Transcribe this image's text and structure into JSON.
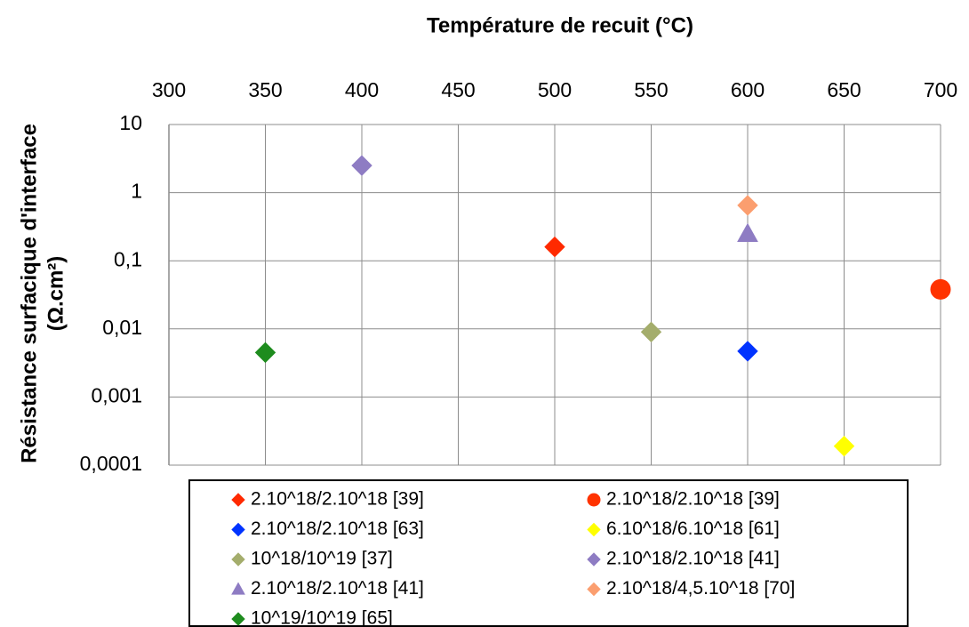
{
  "chart_data": {
    "type": "scatter",
    "xlabel": "Température de recuit (°C)",
    "ylabel": [
      "Résistance surfacique d'interface",
      "(Ω.cm²)"
    ],
    "xlim": [
      300,
      700
    ],
    "xticks": [
      300,
      350,
      400,
      450,
      500,
      550,
      600,
      650,
      700
    ],
    "ylim": [
      0.0001,
      10
    ],
    "ylog": true,
    "yticks": [
      {
        "value": 0.0001,
        "label": "0,0001"
      },
      {
        "value": 0.001,
        "label": "0,001"
      },
      {
        "value": 0.01,
        "label": "0,01"
      },
      {
        "value": 0.1,
        "label": "0,1"
      },
      1,
      10
    ],
    "grid": true,
    "x_axis_position": "top",
    "legend": "bottom",
    "series": [
      {
        "name": "2.10^18/2.10^18 [39]",
        "color": "#ff2a00",
        "marker": "diamond",
        "x": [
          500
        ],
        "values": [
          0.16
        ]
      },
      {
        "name": "2.10^18/2.10^18 [39]",
        "color": "#ff3300",
        "marker": "circle",
        "x": [
          700
        ],
        "values": [
          0.038
        ]
      },
      {
        "name": "2.10^18/2.10^18 [63]",
        "color": "#0033ff",
        "marker": "diamond",
        "x": [
          600
        ],
        "values": [
          0.0047
        ]
      },
      {
        "name": "6.10^18/6.10^18 [61]",
        "color": "#ffff00",
        "marker": "diamond",
        "x": [
          650
        ],
        "values": [
          0.00019
        ]
      },
      {
        "name": "10^18/10^19 [37]",
        "color": "#a4ad6c",
        "marker": "diamond",
        "x": [
          550
        ],
        "values": [
          0.009
        ]
      },
      {
        "name": "2.10^18/2.10^18 [41]",
        "color": "#8e7cc3",
        "marker": "diamond",
        "x": [
          400
        ],
        "values": [
          2.5
        ]
      },
      {
        "name": "2.10^18/2.10^18 [41]",
        "color": "#8e7cc3",
        "marker": "triangle",
        "x": [
          600
        ],
        "values": [
          0.25
        ]
      },
      {
        "name": "2.10^18/4,5.10^18 [70]",
        "color": "#fb9e6f",
        "marker": "diamond",
        "x": [
          600
        ],
        "values": [
          0.65
        ]
      },
      {
        "name": "10^19/10^19 [65]",
        "color": "#1e8c1e",
        "marker": "diamond",
        "x": [
          350
        ],
        "values": [
          0.0045
        ]
      }
    ]
  }
}
